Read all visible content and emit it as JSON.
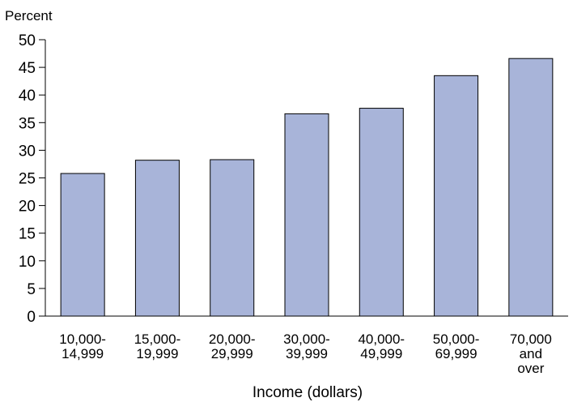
{
  "chart_data": {
    "type": "bar",
    "title": "",
    "ylabel": "Percent",
    "xlabel": "Income (dollars)",
    "ylim": [
      0,
      50
    ],
    "yticks": [
      0,
      5,
      10,
      15,
      20,
      25,
      30,
      35,
      40,
      45,
      50
    ],
    "categories": [
      [
        "10,000-",
        "14,999"
      ],
      [
        "15,000-",
        "19,999"
      ],
      [
        "20,000-",
        "29,999"
      ],
      [
        "30,000-",
        "39,999"
      ],
      [
        "40,000-",
        "49,999"
      ],
      [
        "50,000-",
        "69,999"
      ],
      [
        "70,000",
        "and",
        "over"
      ]
    ],
    "values": [
      25.8,
      28.2,
      28.3,
      36.6,
      37.6,
      43.5,
      46.6
    ],
    "grid": false,
    "colors": {
      "bar_fill": "#a8b4d9",
      "bar_stroke": "#000000",
      "axis": "#000000"
    }
  }
}
